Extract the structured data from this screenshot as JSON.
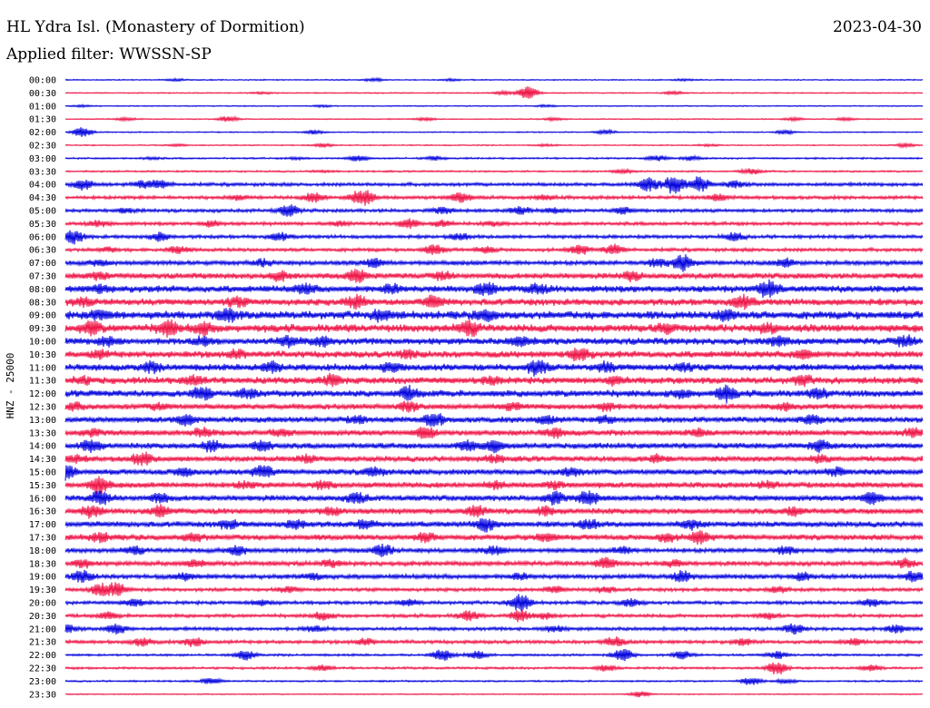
{
  "header": {
    "title": "HL Ydra Isl. (Monastery of Dormition)",
    "date": "2023-04-30",
    "filter": "Applied filter: WWSSN-SP"
  },
  "chart_data": {
    "type": "line",
    "title": "HL Ydra Isl. (Monastery of Dormition)",
    "subtitle": "Applied filter: WWSSN-SP",
    "ylabel": "HNZ - 25000",
    "xlabel": "",
    "grid": false,
    "legend": "none",
    "trace_colors": [
      "#0000dd",
      "#ee1144"
    ],
    "row_labels": [
      "00:00",
      "00:30",
      "01:00",
      "01:30",
      "02:00",
      "02:30",
      "03:00",
      "03:30",
      "04:00",
      "04:30",
      "05:00",
      "05:30",
      "06:00",
      "06:30",
      "07:00",
      "07:30",
      "08:00",
      "08:30",
      "09:00",
      "09:30",
      "10:00",
      "10:30",
      "11:00",
      "11:30",
      "12:00",
      "12:30",
      "13:00",
      "13:30",
      "14:00",
      "14:30",
      "15:00",
      "15:30",
      "16:00",
      "16:30",
      "17:00",
      "17:30",
      "18:00",
      "18:30",
      "19:00",
      "19:30",
      "20:00",
      "20:30",
      "21:00",
      "21:30",
      "22:00",
      "22:30",
      "23:00",
      "23:30"
    ],
    "noise_level": [
      1,
      1,
      1,
      1,
      1,
      1,
      1.5,
      1.5,
      3,
      3,
      3,
      3,
      3,
      3,
      4,
      5,
      6,
      6,
      7,
      7,
      6,
      6,
      6,
      6,
      6,
      5,
      5,
      5,
      5,
      5,
      5,
      5,
      5,
      5,
      5,
      5,
      4,
      4,
      4,
      3,
      3,
      3,
      3,
      3,
      2,
      2,
      1.5,
      1
    ],
    "events": [
      [
        [
          13,
          1
        ],
        [
          36,
          1.5
        ],
        [
          45,
          1
        ],
        [
          72,
          1
        ]
      ],
      [
        [
          23,
          1
        ],
        [
          51,
          2
        ],
        [
          54,
          7
        ],
        [
          71,
          1.5
        ]
      ],
      [
        [
          2,
          1
        ],
        [
          30,
          1
        ],
        [
          56,
          1
        ]
      ],
      [
        [
          7,
          1.5
        ],
        [
          19,
          3
        ],
        [
          42,
          1.5
        ],
        [
          57,
          1.5
        ],
        [
          85,
          1.5
        ],
        [
          91,
          1.5
        ]
      ],
      [
        [
          2,
          5
        ],
        [
          29,
          2
        ],
        [
          63,
          2
        ],
        [
          84,
          2
        ]
      ],
      [
        [
          13,
          1
        ],
        [
          30,
          2
        ],
        [
          56,
          1
        ],
        [
          75,
          1
        ],
        [
          98,
          2
        ]
      ],
      [
        [
          10,
          1
        ],
        [
          27,
          1
        ],
        [
          34,
          3
        ],
        [
          43,
          2
        ],
        [
          69,
          3
        ],
        [
          73,
          2
        ]
      ],
      [
        [
          30,
          1
        ],
        [
          65,
          2
        ],
        [
          80,
          3
        ]
      ],
      [
        [
          2,
          5
        ],
        [
          9,
          3
        ],
        [
          11,
          4
        ],
        [
          68,
          7
        ],
        [
          71,
          10
        ],
        [
          74,
          8
        ],
        [
          78,
          3
        ]
      ],
      [
        [
          20,
          2
        ],
        [
          29,
          5
        ],
        [
          34,
          4
        ],
        [
          35,
          6
        ],
        [
          46,
          5
        ],
        [
          56,
          2
        ],
        [
          76,
          3
        ]
      ],
      [
        [
          7,
          2
        ],
        [
          26,
          6
        ],
        [
          44,
          3
        ],
        [
          53,
          4
        ],
        [
          57,
          2
        ],
        [
          65,
          3
        ]
      ],
      [
        [
          4,
          3
        ],
        [
          17,
          3
        ],
        [
          32,
          2
        ],
        [
          40,
          5
        ],
        [
          44,
          3
        ],
        [
          50,
          2
        ]
      ],
      [
        [
          1,
          7
        ],
        [
          11,
          4
        ],
        [
          25,
          4
        ],
        [
          46,
          3
        ],
        [
          78,
          4
        ]
      ],
      [
        [
          5,
          2
        ],
        [
          13,
          4
        ],
        [
          43,
          5
        ],
        [
          49,
          3
        ],
        [
          60,
          5
        ],
        [
          64,
          5
        ]
      ],
      [
        [
          4,
          3
        ],
        [
          23,
          3
        ],
        [
          36,
          4
        ],
        [
          69,
          4
        ],
        [
          72,
          9
        ],
        [
          84,
          4
        ]
      ],
      [
        [
          4,
          3
        ],
        [
          25,
          4
        ],
        [
          34,
          6
        ],
        [
          44,
          3
        ],
        [
          66,
          4
        ]
      ],
      [
        [
          4,
          3
        ],
        [
          28,
          4
        ],
        [
          38,
          4
        ],
        [
          49,
          6
        ],
        [
          55,
          4
        ],
        [
          82,
          8
        ]
      ],
      [
        [
          2,
          3
        ],
        [
          20,
          4
        ],
        [
          34,
          6
        ],
        [
          43,
          5
        ],
        [
          79,
          6
        ]
      ],
      [
        [
          4,
          4
        ],
        [
          19,
          6
        ],
        [
          37,
          5
        ],
        [
          49,
          4
        ],
        [
          77,
          5
        ]
      ],
      [
        [
          3,
          6
        ],
        [
          12,
          7
        ],
        [
          16,
          5
        ],
        [
          47,
          7
        ],
        [
          70,
          4
        ],
        [
          82,
          4
        ]
      ],
      [
        [
          5,
          4
        ],
        [
          16,
          3
        ],
        [
          26,
          5
        ],
        [
          30,
          4
        ],
        [
          53,
          4
        ],
        [
          83,
          4
        ],
        [
          98,
          4
        ]
      ],
      [
        [
          4,
          3
        ],
        [
          20,
          3
        ],
        [
          40,
          3
        ],
        [
          60,
          6
        ],
        [
          86,
          4
        ]
      ],
      [
        [
          10,
          4
        ],
        [
          24,
          5
        ],
        [
          38,
          4
        ],
        [
          55,
          7
        ],
        [
          63,
          4
        ],
        [
          72,
          3
        ]
      ],
      [
        [
          2,
          3
        ],
        [
          15,
          4
        ],
        [
          31,
          5
        ],
        [
          50,
          3
        ],
        [
          64,
          3
        ],
        [
          86,
          4
        ]
      ],
      [
        [
          16,
          6
        ],
        [
          21,
          4
        ],
        [
          40,
          6
        ],
        [
          72,
          3
        ],
        [
          77,
          7
        ],
        [
          88,
          4
        ]
      ],
      [
        [
          1,
          3
        ],
        [
          11,
          3
        ],
        [
          40,
          4
        ],
        [
          52,
          3
        ],
        [
          63,
          4
        ],
        [
          84,
          3
        ]
      ],
      [
        [
          14,
          5
        ],
        [
          34,
          3
        ],
        [
          43,
          7
        ],
        [
          56,
          4
        ],
        [
          63,
          3
        ],
        [
          87,
          4
        ]
      ],
      [
        [
          3,
          3
        ],
        [
          16,
          4
        ],
        [
          25,
          3
        ],
        [
          42,
          6
        ],
        [
          57,
          4
        ],
        [
          74,
          3
        ],
        [
          99,
          4
        ]
      ],
      [
        [
          3,
          6
        ],
        [
          17,
          5
        ],
        [
          23,
          5
        ],
        [
          47,
          5
        ],
        [
          50,
          5
        ],
        [
          88,
          5
        ]
      ],
      [
        [
          1,
          3
        ],
        [
          9,
          6
        ],
        [
          28,
          3
        ],
        [
          50,
          3
        ],
        [
          69,
          3
        ],
        [
          88,
          3
        ]
      ],
      [
        [
          0,
          8
        ],
        [
          14,
          4
        ],
        [
          23,
          6
        ],
        [
          36,
          4
        ],
        [
          59,
          4
        ],
        [
          90,
          4
        ]
      ],
      [
        [
          4,
          8
        ],
        [
          21,
          3
        ],
        [
          30,
          4
        ],
        [
          50,
          3
        ],
        [
          57,
          3
        ],
        [
          82,
          3
        ]
      ],
      [
        [
          4,
          6
        ],
        [
          11,
          4
        ],
        [
          34,
          5
        ],
        [
          57,
          6
        ],
        [
          61,
          7
        ],
        [
          94,
          6
        ]
      ],
      [
        [
          3,
          6
        ],
        [
          11,
          5
        ],
        [
          31,
          4
        ],
        [
          48,
          5
        ],
        [
          56,
          4
        ],
        [
          85,
          4
        ]
      ],
      [
        [
          19,
          4
        ],
        [
          27,
          4
        ],
        [
          35,
          4
        ],
        [
          49,
          7
        ],
        [
          61,
          4
        ],
        [
          73,
          4
        ]
      ],
      [
        [
          4,
          4
        ],
        [
          15,
          4
        ],
        [
          42,
          4
        ],
        [
          56,
          4
        ],
        [
          70,
          4
        ],
        [
          74,
          6
        ]
      ],
      [
        [
          8,
          4
        ],
        [
          20,
          5
        ],
        [
          37,
          6
        ],
        [
          50,
          4
        ],
        [
          65,
          3
        ],
        [
          84,
          4
        ]
      ],
      [
        [
          2,
          4
        ],
        [
          15,
          3
        ],
        [
          31,
          3
        ],
        [
          63,
          6
        ],
        [
          71,
          3
        ],
        [
          98,
          4
        ]
      ],
      [
        [
          2,
          6
        ],
        [
          14,
          3
        ],
        [
          29,
          3
        ],
        [
          53,
          3
        ],
        [
          72,
          5
        ],
        [
          86,
          4
        ],
        [
          99,
          5
        ]
      ],
      [
        [
          4,
          6
        ],
        [
          6,
          7
        ],
        [
          26,
          3
        ],
        [
          57,
          3
        ],
        [
          63,
          3
        ],
        [
          83,
          3
        ]
      ],
      [
        [
          8,
          4
        ],
        [
          23,
          3
        ],
        [
          40,
          3
        ],
        [
          53,
          10
        ],
        [
          66,
          4
        ],
        [
          94,
          4
        ]
      ],
      [
        [
          5,
          3
        ],
        [
          30,
          4
        ],
        [
          47,
          5
        ],
        [
          53,
          6
        ],
        [
          56,
          3
        ],
        [
          82,
          3
        ]
      ],
      [
        [
          0,
          4
        ],
        [
          6,
          5
        ],
        [
          29,
          3
        ],
        [
          57,
          3
        ],
        [
          85,
          5
        ],
        [
          97,
          4
        ]
      ],
      [
        [
          9,
          4
        ],
        [
          15,
          5
        ],
        [
          35,
          3
        ],
        [
          64,
          5
        ],
        [
          79,
          3
        ],
        [
          92,
          3
        ]
      ],
      [
        [
          21,
          5
        ],
        [
          44,
          6
        ],
        [
          48,
          4
        ],
        [
          65,
          7
        ],
        [
          72,
          4
        ],
        [
          83,
          4
        ]
      ],
      [
        [
          30,
          3
        ],
        [
          63,
          3
        ],
        [
          83,
          7
        ],
        [
          94,
          3
        ]
      ],
      [
        [
          17,
          3
        ],
        [
          80,
          4
        ],
        [
          84,
          2
        ]
      ],
      [
        [
          67,
          3
        ]
      ]
    ]
  }
}
